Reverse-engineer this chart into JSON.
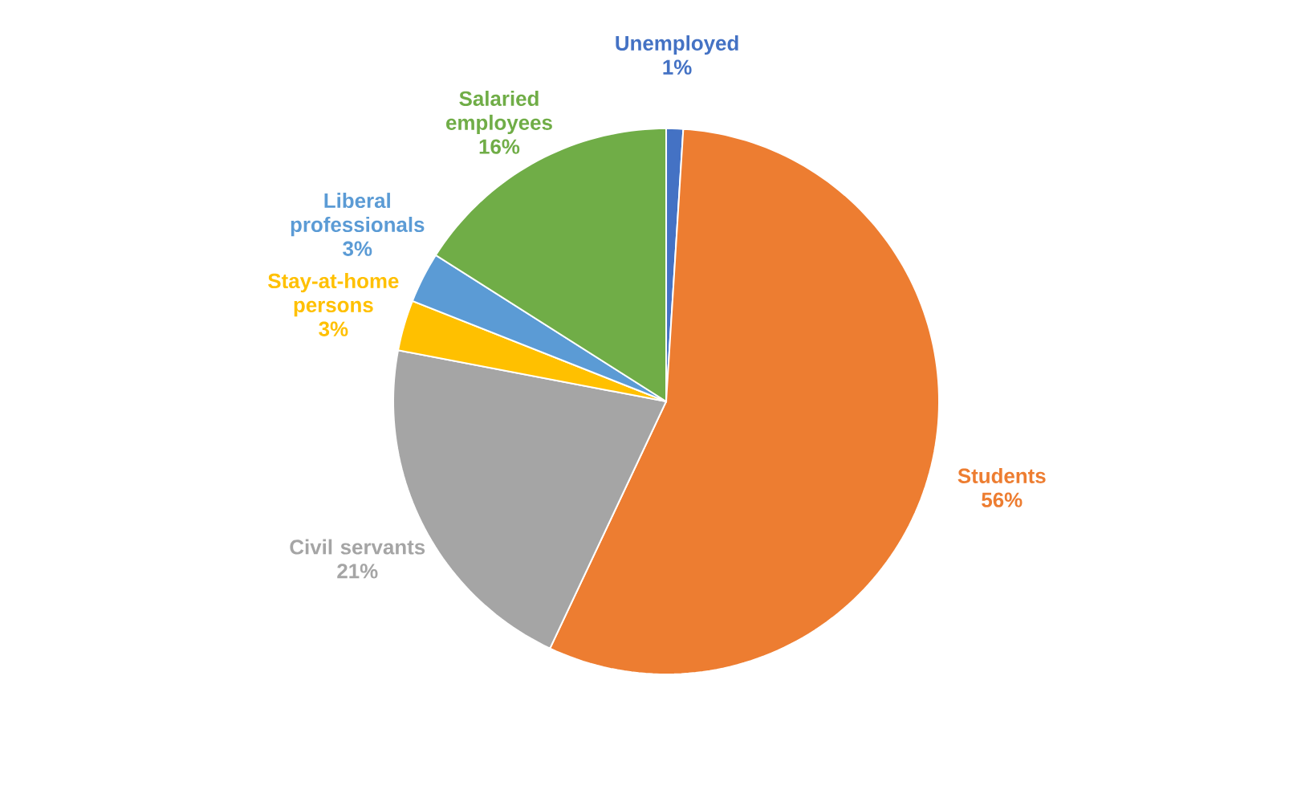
{
  "chart_data": {
    "type": "pie",
    "categories": [
      "Unemployed",
      "Students",
      "Civil servants",
      "Stay-at-home persons",
      "Liberal professionals",
      "Salaried employees"
    ],
    "values": [
      1,
      56,
      21,
      3,
      3,
      16
    ],
    "value_labels": [
      "1%",
      "56%",
      "21%",
      "3%",
      "3%",
      "16%"
    ],
    "colors": [
      "#4472c4",
      "#ed7d31",
      "#a5a5a5",
      "#ffc000",
      "#5b9bd5",
      "#70ad47"
    ]
  }
}
